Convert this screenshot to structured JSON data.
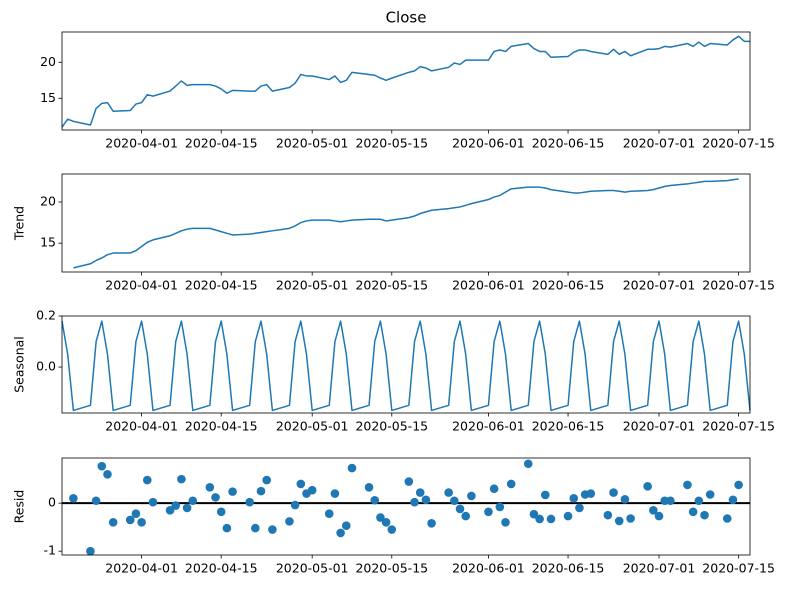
{
  "chart_data": [
    {
      "type": "line",
      "title": "Close",
      "color": "#1f77b4",
      "x": [
        "2020-03-18",
        "2020-03-19",
        "2020-03-20",
        "2020-03-23",
        "2020-03-24",
        "2020-03-25",
        "2020-03-26",
        "2020-03-27",
        "2020-03-30",
        "2020-03-31",
        "2020-04-01",
        "2020-04-02",
        "2020-04-03",
        "2020-04-06",
        "2020-04-07",
        "2020-04-08",
        "2020-04-09",
        "2020-04-10",
        "2020-04-13",
        "2020-04-14",
        "2020-04-15",
        "2020-04-16",
        "2020-04-17",
        "2020-04-20",
        "2020-04-21",
        "2020-04-22",
        "2020-04-23",
        "2020-04-24",
        "2020-04-27",
        "2020-04-28",
        "2020-04-29",
        "2020-04-30",
        "2020-05-01",
        "2020-05-04",
        "2020-05-05",
        "2020-05-06",
        "2020-05-07",
        "2020-05-08",
        "2020-05-11",
        "2020-05-12",
        "2020-05-13",
        "2020-05-14",
        "2020-05-15",
        "2020-05-18",
        "2020-05-19",
        "2020-05-20",
        "2020-05-21",
        "2020-05-22",
        "2020-05-25",
        "2020-05-26",
        "2020-05-27",
        "2020-05-28",
        "2020-05-29",
        "2020-06-01",
        "2020-06-02",
        "2020-06-03",
        "2020-06-04",
        "2020-06-05",
        "2020-06-08",
        "2020-06-09",
        "2020-06-10",
        "2020-06-11",
        "2020-06-12",
        "2020-06-15",
        "2020-06-16",
        "2020-06-17",
        "2020-06-18",
        "2020-06-19",
        "2020-06-22",
        "2020-06-23",
        "2020-06-24",
        "2020-06-25",
        "2020-06-26",
        "2020-06-29",
        "2020-06-30",
        "2020-07-01",
        "2020-07-02",
        "2020-07-03",
        "2020-07-06",
        "2020-07-07",
        "2020-07-08",
        "2020-07-09",
        "2020-07-10",
        "2020-07-13",
        "2020-07-14",
        "2020-07-15",
        "2020-07-16",
        "2020-07-17"
      ],
      "values": [
        11.0,
        12.1,
        11.8,
        11.3,
        13.6,
        14.3,
        14.4,
        13.2,
        13.3,
        14.2,
        14.4,
        15.5,
        15.3,
        16.0,
        16.7,
        17.4,
        16.8,
        16.9,
        16.9,
        16.7,
        16.3,
        15.7,
        16.1,
        16.0,
        16.0,
        16.7,
        16.9,
        16.0,
        16.5,
        17.1,
        18.3,
        18.1,
        18.1,
        17.6,
        18.1,
        17.2,
        17.5,
        18.6,
        18.3,
        18.2,
        17.8,
        17.5,
        17.8,
        18.6,
        18.8,
        19.4,
        19.2,
        18.8,
        19.3,
        19.9,
        19.7,
        20.3,
        20.3,
        20.3,
        21.5,
        21.7,
        21.5,
        22.2,
        22.6,
        21.9,
        21.5,
        21.5,
        20.7,
        20.8,
        21.4,
        21.7,
        21.7,
        21.5,
        21.1,
        21.8,
        21.1,
        21.5,
        20.9,
        21.8,
        21.8,
        21.9,
        22.2,
        22.1,
        22.6,
        22.2,
        22.8,
        22.2,
        22.6,
        22.4,
        23.1,
        23.6,
        22.9,
        22.9
      ],
      "xlim": [
        "2020-03-18",
        "2020-07-17"
      ],
      "xticks": [
        "2020-04-01",
        "2020-04-15",
        "2020-05-01",
        "2020-05-15",
        "2020-06-01",
        "2020-06-15",
        "2020-07-01",
        "2020-07-15"
      ],
      "ylim": [
        10.6,
        24.2
      ],
      "yticks": [
        15,
        20
      ]
    },
    {
      "type": "line",
      "ylabel": "Trend",
      "color": "#1f77b4",
      "x": [
        "2020-03-18",
        "2020-03-19",
        "2020-03-20",
        "2020-03-23",
        "2020-03-24",
        "2020-03-25",
        "2020-03-26",
        "2020-03-27",
        "2020-03-30",
        "2020-03-31",
        "2020-04-01",
        "2020-04-02",
        "2020-04-03",
        "2020-04-06",
        "2020-04-07",
        "2020-04-08",
        "2020-04-09",
        "2020-04-10",
        "2020-04-13",
        "2020-04-14",
        "2020-04-15",
        "2020-04-16",
        "2020-04-17",
        "2020-04-20",
        "2020-04-21",
        "2020-04-22",
        "2020-04-23",
        "2020-04-24",
        "2020-04-27",
        "2020-04-28",
        "2020-04-29",
        "2020-04-30",
        "2020-05-01",
        "2020-05-04",
        "2020-05-05",
        "2020-05-06",
        "2020-05-07",
        "2020-05-08",
        "2020-05-11",
        "2020-05-12",
        "2020-05-13",
        "2020-05-14",
        "2020-05-15",
        "2020-05-18",
        "2020-05-19",
        "2020-05-20",
        "2020-05-21",
        "2020-05-22",
        "2020-05-25",
        "2020-05-26",
        "2020-05-27",
        "2020-05-28",
        "2020-05-29",
        "2020-06-01",
        "2020-06-02",
        "2020-06-03",
        "2020-06-04",
        "2020-06-05",
        "2020-06-08",
        "2020-06-09",
        "2020-06-10",
        "2020-06-11",
        "2020-06-12",
        "2020-06-15",
        "2020-06-16",
        "2020-06-17",
        "2020-06-18",
        "2020-06-19",
        "2020-06-22",
        "2020-06-23",
        "2020-06-24",
        "2020-06-25",
        "2020-06-26",
        "2020-06-29",
        "2020-06-30",
        "2020-07-01",
        "2020-07-02",
        "2020-07-03",
        "2020-07-06",
        "2020-07-07",
        "2020-07-08",
        "2020-07-09",
        "2020-07-10",
        "2020-07-13",
        "2020-07-14",
        "2020-07-15",
        "2020-07-16",
        "2020-07-17"
      ],
      "values": [
        null,
        null,
        12.0,
        12.5,
        12.9,
        13.2,
        13.6,
        13.8,
        13.8,
        14.1,
        14.6,
        15.1,
        15.4,
        15.9,
        16.2,
        16.5,
        16.7,
        16.8,
        16.8,
        16.6,
        16.4,
        16.2,
        16.0,
        16.1,
        16.2,
        16.3,
        16.4,
        16.5,
        16.8,
        17.1,
        17.5,
        17.7,
        17.8,
        17.8,
        17.7,
        17.6,
        17.7,
        17.8,
        17.9,
        17.9,
        17.9,
        17.7,
        17.8,
        18.1,
        18.3,
        18.6,
        18.8,
        19.0,
        19.2,
        19.3,
        19.4,
        19.6,
        19.8,
        20.3,
        20.6,
        20.8,
        21.2,
        21.6,
        21.8,
        21.8,
        21.8,
        21.7,
        21.5,
        21.2,
        21.1,
        21.1,
        21.2,
        21.3,
        21.4,
        21.4,
        21.3,
        21.2,
        21.3,
        21.4,
        21.5,
        21.7,
        21.9,
        22.0,
        22.2,
        22.3,
        22.4,
        22.5,
        22.5,
        22.6,
        22.7,
        22.8,
        null,
        null
      ],
      "xlim": [
        "2020-03-18",
        "2020-07-17"
      ],
      "xticks": [
        "2020-04-01",
        "2020-04-15",
        "2020-05-01",
        "2020-05-15",
        "2020-06-01",
        "2020-06-15",
        "2020-07-01",
        "2020-07-15"
      ],
      "ylim": [
        11.5,
        23.4
      ],
      "yticks": [
        15,
        20
      ]
    },
    {
      "type": "line",
      "ylabel": "Seasonal",
      "color": "#1f77b4",
      "x": [
        "2020-03-18",
        "2020-03-19",
        "2020-03-20",
        "2020-03-23",
        "2020-03-24",
        "2020-03-25",
        "2020-03-26",
        "2020-03-27",
        "2020-03-30",
        "2020-03-31",
        "2020-04-01",
        "2020-04-02",
        "2020-04-03",
        "2020-04-06",
        "2020-04-07",
        "2020-04-08",
        "2020-04-09",
        "2020-04-10",
        "2020-04-13",
        "2020-04-14",
        "2020-04-15",
        "2020-04-16",
        "2020-04-17",
        "2020-04-20",
        "2020-04-21",
        "2020-04-22",
        "2020-04-23",
        "2020-04-24",
        "2020-04-27",
        "2020-04-28",
        "2020-04-29",
        "2020-04-30",
        "2020-05-01",
        "2020-05-04",
        "2020-05-05",
        "2020-05-06",
        "2020-05-07",
        "2020-05-08",
        "2020-05-11",
        "2020-05-12",
        "2020-05-13",
        "2020-05-14",
        "2020-05-15",
        "2020-05-18",
        "2020-05-19",
        "2020-05-20",
        "2020-05-21",
        "2020-05-22",
        "2020-05-25",
        "2020-05-26",
        "2020-05-27",
        "2020-05-28",
        "2020-05-29",
        "2020-06-01",
        "2020-06-02",
        "2020-06-03",
        "2020-06-04",
        "2020-06-05",
        "2020-06-08",
        "2020-06-09",
        "2020-06-10",
        "2020-06-11",
        "2020-06-12",
        "2020-06-15",
        "2020-06-16",
        "2020-06-17",
        "2020-06-18",
        "2020-06-19",
        "2020-06-22",
        "2020-06-23",
        "2020-06-24",
        "2020-06-25",
        "2020-06-26",
        "2020-06-29",
        "2020-06-30",
        "2020-07-01",
        "2020-07-02",
        "2020-07-03",
        "2020-07-06",
        "2020-07-07",
        "2020-07-08",
        "2020-07-09",
        "2020-07-10",
        "2020-07-13",
        "2020-07-14",
        "2020-07-15",
        "2020-07-16",
        "2020-07-17"
      ],
      "values": [
        0.18,
        0.05,
        -0.17,
        -0.15,
        0.1,
        0.18,
        0.05,
        -0.17,
        -0.15,
        0.1,
        0.18,
        0.05,
        -0.17,
        -0.15,
        0.1,
        0.18,
        0.05,
        -0.17,
        -0.15,
        0.1,
        0.18,
        0.05,
        -0.17,
        -0.15,
        0.1,
        0.18,
        0.05,
        -0.17,
        -0.15,
        0.1,
        0.18,
        0.05,
        -0.17,
        -0.15,
        0.1,
        0.18,
        0.05,
        -0.17,
        -0.15,
        0.1,
        0.18,
        0.05,
        -0.17,
        -0.15,
        0.1,
        0.18,
        0.05,
        -0.17,
        -0.15,
        0.1,
        0.18,
        0.05,
        -0.17,
        -0.15,
        0.1,
        0.18,
        0.05,
        -0.17,
        -0.15,
        0.1,
        0.18,
        0.05,
        -0.17,
        -0.15,
        0.1,
        0.18,
        0.05,
        -0.17,
        -0.15,
        0.1,
        0.18,
        0.05,
        -0.17,
        -0.15,
        0.1,
        0.18,
        0.05,
        -0.17,
        -0.15,
        0.1,
        0.18,
        0.05,
        -0.17,
        -0.15,
        0.1,
        0.18,
        0.05,
        -0.17
      ],
      "xlim": [
        "2020-03-18",
        "2020-07-17"
      ],
      "xticks": [
        "2020-04-01",
        "2020-04-15",
        "2020-05-01",
        "2020-05-15",
        "2020-06-01",
        "2020-06-15",
        "2020-07-01",
        "2020-07-15"
      ],
      "ylim": [
        -0.18,
        0.2
      ],
      "yticks": [
        {
          "value": 0,
          "label": "0.0"
        },
        {
          "value": 0.2,
          "label": "0.2"
        }
      ]
    },
    {
      "type": "scatter",
      "ylabel": "Resid",
      "color": "#1f77b4",
      "hline": 0,
      "x": [
        "2020-03-18",
        "2020-03-19",
        "2020-03-20",
        "2020-03-23",
        "2020-03-24",
        "2020-03-25",
        "2020-03-26",
        "2020-03-27",
        "2020-03-30",
        "2020-03-31",
        "2020-04-01",
        "2020-04-02",
        "2020-04-03",
        "2020-04-06",
        "2020-04-07",
        "2020-04-08",
        "2020-04-09",
        "2020-04-10",
        "2020-04-13",
        "2020-04-14",
        "2020-04-15",
        "2020-04-16",
        "2020-04-17",
        "2020-04-20",
        "2020-04-21",
        "2020-04-22",
        "2020-04-23",
        "2020-04-24",
        "2020-04-27",
        "2020-04-28",
        "2020-04-29",
        "2020-04-30",
        "2020-05-01",
        "2020-05-04",
        "2020-05-05",
        "2020-05-06",
        "2020-05-07",
        "2020-05-08",
        "2020-05-11",
        "2020-05-12",
        "2020-05-13",
        "2020-05-14",
        "2020-05-15",
        "2020-05-18",
        "2020-05-19",
        "2020-05-20",
        "2020-05-21",
        "2020-05-22",
        "2020-05-25",
        "2020-05-26",
        "2020-05-27",
        "2020-05-28",
        "2020-05-29",
        "2020-06-01",
        "2020-06-02",
        "2020-06-03",
        "2020-06-04",
        "2020-06-05",
        "2020-06-08",
        "2020-06-09",
        "2020-06-10",
        "2020-06-11",
        "2020-06-12",
        "2020-06-15",
        "2020-06-16",
        "2020-06-17",
        "2020-06-18",
        "2020-06-19",
        "2020-06-22",
        "2020-06-23",
        "2020-06-24",
        "2020-06-25",
        "2020-06-26",
        "2020-06-29",
        "2020-06-30",
        "2020-07-01",
        "2020-07-02",
        "2020-07-03",
        "2020-07-06",
        "2020-07-07",
        "2020-07-08",
        "2020-07-09",
        "2020-07-10",
        "2020-07-13",
        "2020-07-14",
        "2020-07-15",
        "2020-07-16",
        "2020-07-17"
      ],
      "values": [
        null,
        null,
        0.1,
        -1.0,
        0.05,
        0.77,
        0.6,
        -0.4,
        -0.35,
        -0.22,
        -0.4,
        0.48,
        0.02,
        -0.15,
        -0.05,
        0.5,
        -0.1,
        0.05,
        0.33,
        0.12,
        -0.18,
        -0.52,
        0.24,
        0.02,
        -0.52,
        0.25,
        0.48,
        -0.55,
        -0.38,
        -0.04,
        0.4,
        0.2,
        0.27,
        -0.22,
        0.2,
        -0.62,
        -0.47,
        0.73,
        0.33,
        0.06,
        -0.3,
        -0.4,
        -0.55,
        0.45,
        0.02,
        0.22,
        0.07,
        -0.42,
        0.22,
        0.05,
        -0.12,
        -0.27,
        0.15,
        -0.18,
        0.3,
        -0.08,
        -0.4,
        0.4,
        0.82,
        -0.23,
        -0.33,
        0.17,
        -0.33,
        -0.27,
        0.1,
        -0.1,
        0.18,
        0.2,
        -0.25,
        0.22,
        -0.37,
        0.08,
        -0.32,
        0.35,
        -0.15,
        -0.27,
        0.05,
        0.05,
        0.38,
        -0.18,
        0.05,
        -0.25,
        0.18,
        -0.32,
        0.07,
        0.38,
        null,
        null
      ],
      "xlim": [
        "2020-03-18",
        "2020-07-17"
      ],
      "xticks": [
        "2020-04-01",
        "2020-04-15",
        "2020-05-01",
        "2020-05-15",
        "2020-06-01",
        "2020-06-15",
        "2020-07-01",
        "2020-07-15"
      ],
      "ylim": [
        -1.08,
        0.94
      ],
      "yticks": [
        -1,
        0
      ]
    }
  ]
}
